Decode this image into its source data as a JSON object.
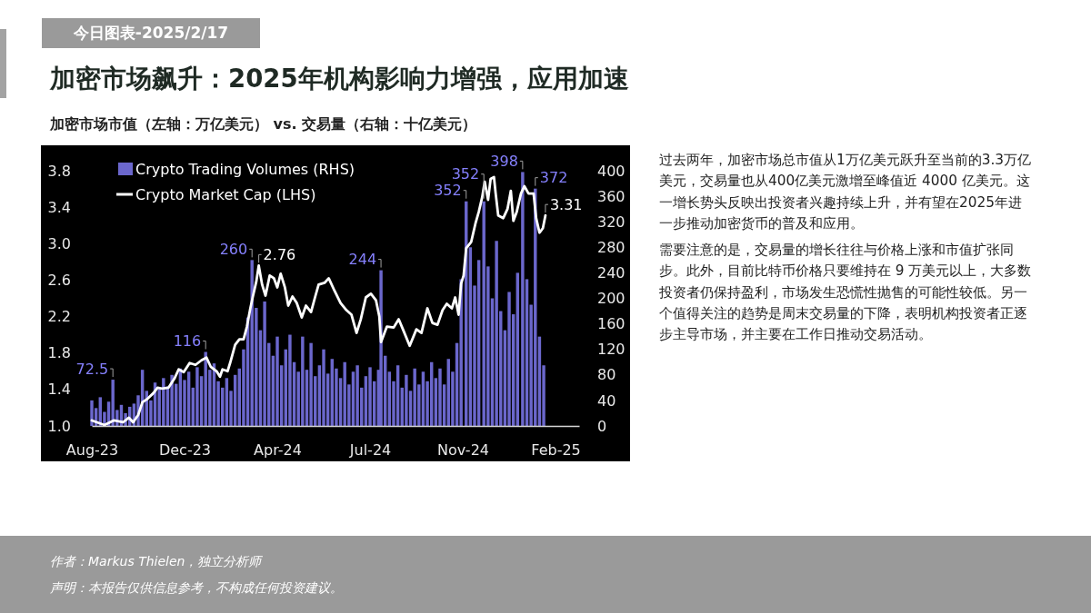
{
  "chart_data": {
    "type": "bar",
    "title": "加密市场飙升：2025年机构影响力增强，应用加速",
    "subtitle": "加密市场市值（左轴：万亿美元） vs. 交易量（右轴：十亿美元）",
    "annotations": [
      "今日图表-2025/2/17",
      "过去两年，加密市场总市值从1万亿美元跃升至当前的3.3万亿美元，交易量也从400亿美元激增至峰值近 4000 亿美元。这一增长势头反映出投资者兴趣持续上升，并有望在2025年进一步推动加密货币的普及和应用。",
      "需要注意的是，交易量的增长往往与价格上涨和市值扩张同步。此外，目前比特币价格只要维持在 9 万美元以上，大多数投资者仍保持盈利，市场发生恐慌性抛售的可能性较低。另一个值得关注的趋势是周末交易量的下降，表明机构投资者正逐步主导市场，并主要在工作日推动交易活动。",
      "作者：Markus Thielen，独立分析师",
      "声明：本报告仅供信息参考，不构成任何投资建议。"
    ],
    "xlim": [
      "2023-08-28",
      "2025-03-28"
    ],
    "xticks": [
      {
        "value": "2023-08-28",
        "label": "Aug-23"
      },
      {
        "value": "2023-12-16",
        "label": "Dec-23"
      },
      {
        "value": "2024-04-04",
        "label": "Apr-24"
      },
      {
        "value": "2024-07-23",
        "label": "Jul-24"
      },
      {
        "value": "2024-11-10",
        "label": "Nov-24"
      },
      {
        "value": "2025-02-28",
        "label": "Feb-25"
      }
    ],
    "ylim": [
      1,
      3.8
    ],
    "yticks": [
      {
        "value": 1,
        "label": "1.0"
      },
      1.4,
      1.8,
      2.2,
      2.6,
      {
        "value": 3,
        "label": "3.0"
      },
      3.4,
      3.8
    ],
    "y2lim": [
      0,
      400
    ],
    "y2ticks": [
      0,
      40,
      80,
      120,
      160,
      200,
      240,
      280,
      320,
      360,
      400
    ],
    "legend": "top left",
    "series": [
      {
        "name": "Crypto Trading Volumes (RHS)",
        "axis": "y2",
        "color": "#6b67cc",
        "x": [
          "2023-08-28",
          "2023-09-02",
          "2023-09-07",
          "2023-09-12",
          "2023-09-17",
          "2023-09-22",
          "2023-09-27",
          "2023-10-02",
          "2023-10-07",
          "2023-10-12",
          "2023-10-17",
          "2023-10-22",
          "2023-10-27",
          "2023-11-01",
          "2023-11-06",
          "2023-11-11",
          "2023-11-16",
          "2023-11-21",
          "2023-11-26",
          "2023-12-01",
          "2023-12-06",
          "2023-12-11",
          "2023-12-16",
          "2023-12-21",
          "2023-12-26",
          "2023-12-31",
          "2024-01-05",
          "2024-01-10",
          "2024-01-15",
          "2024-01-20",
          "2024-01-25",
          "2024-01-30",
          "2024-02-04",
          "2024-02-09",
          "2024-02-14",
          "2024-02-19",
          "2024-02-24",
          "2024-02-29",
          "2024-03-05",
          "2024-03-10",
          "2024-03-15",
          "2024-03-20",
          "2024-03-25",
          "2024-03-30",
          "2024-04-04",
          "2024-04-09",
          "2024-04-14",
          "2024-04-19",
          "2024-04-24",
          "2024-04-29",
          "2024-05-04",
          "2024-05-09",
          "2024-05-14",
          "2024-05-19",
          "2024-05-24",
          "2024-05-29",
          "2024-06-03",
          "2024-06-08",
          "2024-06-13",
          "2024-06-18",
          "2024-06-23",
          "2024-06-28",
          "2024-07-03",
          "2024-07-08",
          "2024-07-13",
          "2024-07-18",
          "2024-07-23",
          "2024-07-28",
          "2024-08-02",
          "2024-08-05",
          "2024-08-10",
          "2024-08-15",
          "2024-08-20",
          "2024-08-25",
          "2024-08-30",
          "2024-09-04",
          "2024-09-09",
          "2024-09-14",
          "2024-09-19",
          "2024-09-24",
          "2024-09-29",
          "2024-10-04",
          "2024-10-09",
          "2024-10-14",
          "2024-10-19",
          "2024-10-24",
          "2024-10-29",
          "2024-11-03",
          "2024-11-08",
          "2024-11-14",
          "2024-11-19",
          "2024-11-24",
          "2024-11-29",
          "2024-12-05",
          "2024-12-10",
          "2024-12-15",
          "2024-12-20",
          "2024-12-25",
          "2024-12-30",
          "2025-01-04",
          "2025-01-09",
          "2025-01-14",
          "2025-01-20",
          "2025-01-25",
          "2025-01-30",
          "2025-02-04",
          "2025-02-09",
          "2025-02-14"
        ],
        "values": [
          40,
          28,
          45,
          22,
          38,
          72.5,
          25,
          33,
          20,
          30,
          35,
          48,
          88,
          55,
          40,
          68,
          58,
          75,
          62,
          80,
          66,
          90,
          72,
          85,
          60,
          92,
          78,
          116,
          88,
          98,
          70,
          60,
          75,
          55,
          80,
          90,
          120,
          170,
          260,
          185,
          150,
          195,
          130,
          110,
          140,
          95,
          120,
          143,
          100,
          85,
          140,
          88,
          130,
          78,
          95,
          120,
          82,
          105,
          90,
          75,
          100,
          65,
          85,
          95,
          60,
          78,
          92,
          70,
          88,
          244,
          110,
          85,
          70,
          95,
          60,
          80,
          55,
          90,
          65,
          85,
          70,
          100,
          75,
          90,
          65,
          105,
          85,
          130,
          230,
          352,
          280,
          220,
          260,
          352,
          250,
          200,
          290,
          180,
          150,
          210,
          175,
          240,
          398,
          230,
          190,
          372,
          140,
          95
        ],
        "value_labels": [
          null,
          null,
          null,
          null,
          null,
          "72.5",
          null,
          null,
          null,
          null,
          null,
          null,
          null,
          null,
          null,
          null,
          null,
          null,
          null,
          null,
          null,
          null,
          null,
          null,
          null,
          null,
          null,
          "116",
          null,
          null,
          null,
          null,
          null,
          null,
          null,
          null,
          null,
          null,
          "260",
          null,
          null,
          null,
          null,
          null,
          null,
          null,
          null,
          null,
          null,
          null,
          null,
          null,
          null,
          null,
          null,
          null,
          null,
          null,
          null,
          null,
          null,
          null,
          null,
          null,
          null,
          null,
          null,
          null,
          null,
          "244",
          null,
          null,
          null,
          null,
          null,
          null,
          null,
          null,
          null,
          null,
          null,
          null,
          null,
          null,
          null,
          null,
          null,
          null,
          null,
          "352",
          null,
          null,
          null,
          "352",
          null,
          null,
          null,
          null,
          null,
          null,
          null,
          null,
          "398",
          null,
          null,
          "372",
          null,
          null
        ]
      },
      {
        "name": "Crypto Market Cap (LHS)",
        "type": "line",
        "color": "#ffffff",
        "x": [
          "2023-08-28",
          "2023-09-12",
          "2023-09-23",
          "2023-10-04",
          "2023-10-11",
          "2023-10-16",
          "2023-10-22",
          "2023-10-27",
          "2023-11-01",
          "2023-11-09",
          "2023-11-14",
          "2023-11-19",
          "2023-11-27",
          "2023-12-04",
          "2023-12-09",
          "2023-12-15",
          "2023-12-22",
          "2023-12-29",
          "2024-01-05",
          "2024-01-11",
          "2024-01-16",
          "2024-01-23",
          "2024-01-27",
          "2024-01-30",
          "2024-02-05",
          "2024-02-08",
          "2024-02-14",
          "2024-02-19",
          "2024-02-24",
          "2024-02-28",
          "2024-03-03",
          "2024-03-06",
          "2024-03-10",
          "2024-03-13",
          "2024-03-17",
          "2024-03-21",
          "2024-03-26",
          "2024-03-31",
          "2024-04-04",
          "2024-04-08",
          "2024-04-13",
          "2024-04-17",
          "2024-04-22",
          "2024-04-27",
          "2024-05-03",
          "2024-05-08",
          "2024-05-14",
          "2024-05-19",
          "2024-05-23",
          "2024-05-30",
          "2024-06-04",
          "2024-06-11",
          "2024-06-18",
          "2024-06-25",
          "2024-07-01",
          "2024-07-07",
          "2024-07-12",
          "2024-07-18",
          "2024-07-24",
          "2024-07-30",
          "2024-08-03",
          "2024-08-05",
          "2024-08-12",
          "2024-08-20",
          "2024-08-26",
          "2024-08-31",
          "2024-09-08",
          "2024-09-16",
          "2024-09-22",
          "2024-09-29",
          "2024-10-05",
          "2024-10-11",
          "2024-10-17",
          "2024-10-22",
          "2024-10-28",
          "2024-11-01",
          "2024-11-05",
          "2024-11-08",
          "2024-11-11",
          "2024-11-14",
          "2024-11-20",
          "2024-11-25",
          "2024-11-29",
          "2024-12-03",
          "2024-12-06",
          "2024-12-10",
          "2024-12-13",
          "2024-12-17",
          "2024-12-19",
          "2024-12-22",
          "2024-12-28",
          "2025-01-02",
          "2025-01-06",
          "2025-01-09",
          "2025-01-13",
          "2025-01-18",
          "2025-01-22",
          "2025-01-27",
          "2025-02-02",
          "2025-02-05",
          "2025-02-09",
          "2025-02-13",
          "2025-02-16"
        ],
        "values": [
          1.06,
          1.01,
          1.06,
          1.04,
          1.09,
          1.04,
          1.12,
          1.26,
          1.29,
          1.36,
          1.42,
          1.41,
          1.42,
          1.52,
          1.62,
          1.59,
          1.69,
          1.67,
          1.72,
          1.75,
          1.65,
          1.6,
          1.54,
          1.62,
          1.6,
          1.69,
          1.89,
          1.95,
          1.95,
          2.09,
          2.29,
          2.42,
          2.58,
          2.76,
          2.55,
          2.43,
          2.65,
          2.62,
          2.52,
          2.67,
          2.52,
          2.32,
          2.42,
          2.35,
          2.19,
          2.32,
          2.25,
          2.42,
          2.55,
          2.57,
          2.62,
          2.48,
          2.35,
          2.27,
          2.22,
          2.02,
          2.17,
          2.41,
          2.45,
          2.38,
          2.2,
          1.92,
          2.09,
          2.08,
          2.17,
          2.06,
          1.88,
          2.06,
          2.02,
          2.29,
          2.13,
          2.11,
          2.27,
          2.34,
          2.29,
          2.41,
          2.22,
          2.56,
          2.65,
          2.95,
          3.02,
          3.22,
          3.35,
          3.51,
          3.68,
          3.48,
          3.71,
          3.73,
          3.55,
          3.31,
          3.28,
          3.38,
          3.58,
          3.25,
          3.35,
          3.55,
          3.63,
          3.55,
          3.55,
          3.28,
          3.12,
          3.17,
          3.31
        ],
        "value_labels": [
          null,
          null,
          null,
          null,
          null,
          null,
          null,
          null,
          null,
          null,
          null,
          null,
          null,
          null,
          null,
          null,
          null,
          null,
          null,
          null,
          null,
          null,
          null,
          null,
          null,
          null,
          null,
          null,
          null,
          null,
          null,
          null,
          null,
          "2.76",
          null,
          null,
          null,
          null,
          null,
          null,
          null,
          null,
          null,
          null,
          null,
          null,
          null,
          null,
          null,
          null,
          null,
          null,
          null,
          null,
          null,
          null,
          null,
          null,
          null,
          null,
          null,
          null,
          null,
          null,
          null,
          null,
          null,
          null,
          null,
          null,
          null,
          null,
          null,
          null,
          null,
          null,
          null,
          null,
          null,
          null,
          null,
          null,
          null,
          null,
          null,
          null,
          null,
          null,
          null,
          null,
          null,
          null,
          null,
          null,
          null,
          null,
          null,
          null,
          null,
          null,
          null,
          null,
          "3.31"
        ]
      }
    ]
  }
}
